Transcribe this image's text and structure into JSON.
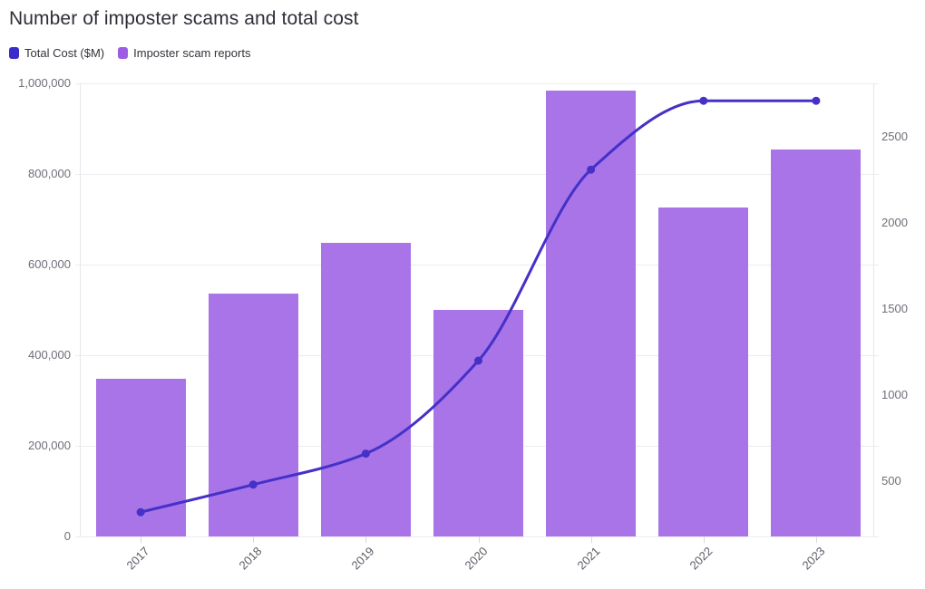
{
  "title": "Number of imposter scams and total cost",
  "legend": [
    {
      "label": "Total Cost ($M)",
      "color": "#3b2bc8"
    },
    {
      "label": "Imposter scam reports",
      "color": "#9c5ce4"
    }
  ],
  "chart_data": {
    "type": "bar",
    "subtype": "combo-bar-line",
    "title": "Number of imposter scams and total cost",
    "categories": [
      "2017",
      "2018",
      "2019",
      "2020",
      "2021",
      "2022",
      "2023"
    ],
    "series": [
      {
        "name": "Total Cost ($M)",
        "type": "line",
        "axis": "right",
        "color": "#4531c8",
        "marker": "circle",
        "values": [
          320,
          480,
          660,
          1200,
          2310,
          2710,
          2710
        ]
      },
      {
        "name": "Imposter scam reports",
        "type": "bar",
        "axis": "left",
        "color": "#a874e8",
        "values": [
          348000,
          536000,
          648000,
          500000,
          984000,
          726000,
          854000
        ]
      }
    ],
    "left_axis": {
      "range": [
        0,
        1000000
      ],
      "tick_values": [
        0,
        200000,
        400000,
        600000,
        800000,
        1000000
      ],
      "tick_labels": [
        "0",
        "200,000",
        "400,000",
        "600,000",
        "800,000",
        "1,000,000"
      ]
    },
    "right_axis": {
      "range": [
        179,
        2811
      ],
      "tick_values": [
        500,
        1000,
        1500,
        2000,
        2500
      ],
      "tick_labels": [
        "500",
        "1000",
        "1500",
        "2000",
        "2500"
      ]
    },
    "xlabel": "",
    "ylabel": "",
    "grid": "horizontal",
    "legend_position": "top-left",
    "x_label_rotation": -45
  }
}
